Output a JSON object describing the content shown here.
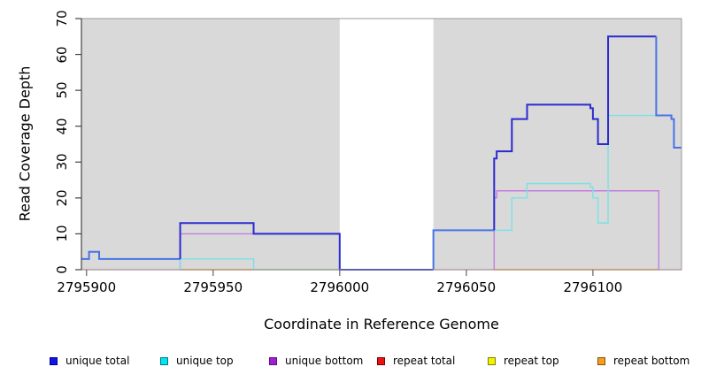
{
  "axes": {
    "x": {
      "title": "Coordinate in Reference Genome",
      "tick_labels": [
        "2795900",
        "2795950",
        "2796000",
        "2796050",
        "2796100"
      ],
      "tick_values": [
        2795900,
        2795950,
        2796000,
        2796050,
        2796100
      ],
      "range": [
        2795898,
        2796135
      ]
    },
    "y": {
      "title": "Read Coverage Depth",
      "tick_labels": [
        "0",
        "10",
        "20",
        "30",
        "40",
        "50",
        "60",
        "70"
      ],
      "tick_values": [
        0,
        10,
        20,
        30,
        40,
        50,
        60,
        70
      ],
      "range": [
        0,
        70
      ]
    }
  },
  "style": {
    "plot_bg": "#d9d9d9",
    "gap_bg": "#ffffff",
    "frame": "#999999",
    "axis_line": "#444444",
    "x_tick_color": "#777777",
    "text": "#000000"
  },
  "gap_region": {
    "from": 2796000,
    "to": 2796037
  },
  "legend": [
    {
      "label": "unique total",
      "fill": "#1414e6",
      "border": "#000090"
    },
    {
      "label": "unique top",
      "fill": "#00e5ee",
      "border": "#007a80"
    },
    {
      "label": "unique bottom",
      "fill": "#a020d0",
      "border": "#5a1090"
    },
    {
      "label": "repeat total",
      "fill": "#ee1111",
      "border": "#800000"
    },
    {
      "label": "repeat top",
      "fill": "#f2f200",
      "border": "#808000"
    },
    {
      "label": "repeat bottom",
      "fill": "#f59d20",
      "border": "#8a5200"
    }
  ],
  "chart_data": {
    "type": "line",
    "x_unit": "reference genome coordinate",
    "y_unit": "read coverage depth",
    "xlim": [
      2795898,
      2796135
    ],
    "ylim": [
      0,
      70
    ],
    "series": [
      {
        "name": "repeat total",
        "color": "#d4628f",
        "width": 1.2,
        "runs": [
          [
            [
              2795898,
              2796135,
              0
            ]
          ]
        ]
      },
      {
        "name": "repeat top",
        "color": "#8ccf8c",
        "width": 1.4,
        "runs": [
          [
            [
              2795966,
              2796000,
              0
            ]
          ]
        ]
      },
      {
        "name": "repeat bottom",
        "color": "#ff9d1e",
        "width": 1.6,
        "runs": [
          [
            [
              2795937,
              2795966,
              0
            ]
          ],
          [
            [
              2796061,
              2796126,
              0
            ]
          ]
        ]
      },
      {
        "name": "unique bottom",
        "color": "#c17fe0",
        "width": 1.4,
        "runs": [
          [
            [
              2795937,
              2796000,
              10
            ]
          ],
          [
            [
              2796061,
              2796062,
              20
            ],
            [
              2796062,
              2796126,
              22
            ]
          ]
        ]
      },
      {
        "name": "unique top",
        "color": "#7ae1e8",
        "width": 1.4,
        "runs": [
          [
            [
              2795937,
              2795966,
              3
            ]
          ],
          [
            [
              2796037,
              2796068,
              11
            ],
            [
              2796068,
              2796074,
              20
            ],
            [
              2796074,
              2796099,
              24
            ],
            [
              2796099,
              2796100,
              23
            ],
            [
              2796100,
              2796102,
              20
            ],
            [
              2796102,
              2796106,
              13
            ],
            [
              2796106,
              2796131,
              43
            ],
            [
              2796131,
              2796132,
              42
            ],
            [
              2796132,
              2796135,
              34
            ]
          ]
        ]
      },
      {
        "name": "unique total",
        "color": "#2b2bd0",
        "bright_color": "#4773ea",
        "width": 2,
        "segments": [
          [
            2795898,
            2795901,
            3,
            1
          ],
          [
            2795901,
            2795905,
            5,
            1
          ],
          [
            2795905,
            2795937,
            3,
            1
          ],
          [
            2795937,
            2795966,
            13,
            0
          ],
          [
            2795966,
            2796000,
            10,
            0
          ],
          [
            2796000,
            2796037,
            0,
            0
          ],
          [
            2796037,
            2796061,
            11,
            1
          ],
          [
            2796061,
            2796062,
            31,
            0
          ],
          [
            2796062,
            2796068,
            33,
            0
          ],
          [
            2796068,
            2796074,
            42,
            0
          ],
          [
            2796074,
            2796099,
            46,
            0
          ],
          [
            2796099,
            2796100,
            45,
            0
          ],
          [
            2796100,
            2796102,
            42,
            0
          ],
          [
            2796102,
            2796106,
            35,
            0
          ],
          [
            2796106,
            2796125,
            65,
            0
          ],
          [
            2796125,
            2796131,
            43,
            1
          ],
          [
            2796131,
            2796132,
            42,
            1
          ],
          [
            2796132,
            2796135,
            34,
            1
          ]
        ]
      }
    ]
  }
}
